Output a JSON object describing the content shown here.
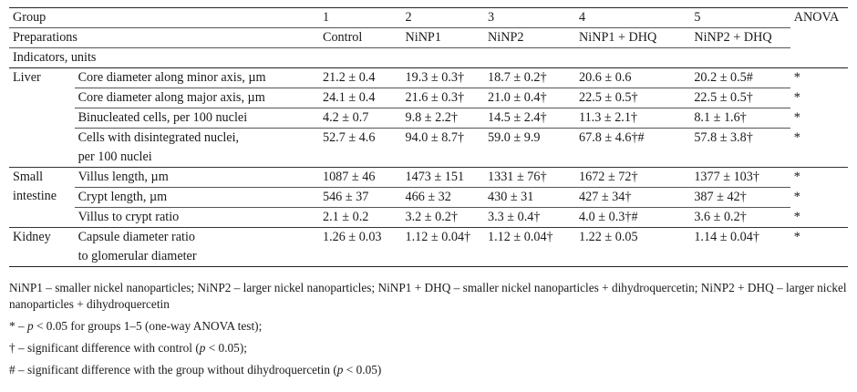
{
  "header": {
    "group_label": "Group",
    "group_numbers": [
      "1",
      "2",
      "3",
      "4",
      "5"
    ],
    "anova_label": "ANOVA",
    "preparations_label": "Preparations",
    "preparations": [
      "Control",
      "NiNP1",
      "NiNP2",
      "NiNP1 + DHQ",
      "NiNP2 + DHQ"
    ],
    "indicators_label": "Indicators, units"
  },
  "organs": {
    "liver": "Liver",
    "small_intestine_line1": "Small",
    "small_intestine_line2": "intestine",
    "kidney": "Kidney"
  },
  "rows": [
    {
      "indicator": "Core diameter along minor axis, µm",
      "values": [
        "21.2 ± 0.4",
        "19.3 ± 0.3†",
        "18.7 ± 0.2†",
        "20.6 ± 0.6",
        "20.2 ± 0.5#"
      ],
      "anova": "*"
    },
    {
      "indicator": "Core diameter along major axis, µm",
      "values": [
        "24.1 ± 0.4",
        "21.6 ± 0.3†",
        "21.0 ± 0.4†",
        "22.5 ± 0.5†",
        "22.5 ± 0.5†"
      ],
      "anova": "*"
    },
    {
      "indicator": "Binucleated cells, per 100 nuclei",
      "values": [
        "4.2 ± 0.7",
        "9.8 ± 2.2†",
        "14.5 ± 2.4†",
        "11.3 ± 2.1†",
        "8.1 ± 1.6†"
      ],
      "anova": "*"
    },
    {
      "indicator_line1": "Cells with disintegrated nuclei,",
      "indicator_line2": "per 100 nuclei",
      "values": [
        "52.7 ± 4.6",
        "94.0 ± 8.7†",
        "59.0 ± 9.9",
        "67.8 ± 4.6†#",
        "57.8 ± 3.8†"
      ],
      "anova": "*"
    },
    {
      "indicator": "Villus length, µm",
      "values": [
        "1087 ± 46",
        "1473 ± 151",
        "1331 ± 76†",
        "1672 ± 72†",
        "1377 ± 103†"
      ],
      "anova": "*"
    },
    {
      "indicator": "Crypt length, µm",
      "values": [
        "546 ± 37",
        "466 ± 32",
        "430 ± 31",
        "427 ± 34†",
        "387 ± 42†"
      ],
      "anova": "*"
    },
    {
      "indicator": "Villus to crypt ratio",
      "values": [
        "2.1 ± 0.2",
        "3.2 ± 0.2†",
        "3.3 ± 0.4†",
        "4.0 ± 0.3†#",
        "3.6 ± 0.2†"
      ],
      "anova": "*"
    },
    {
      "indicator_line1": "Capsule diameter ratio",
      "indicator_line2": "to glomerular diameter",
      "values": [
        "1.26 ± 0.03",
        "1.12 ± 0.04†",
        "1.12 ± 0.04†",
        "1.22 ± 0.05",
        "1.14 ± 0.04†"
      ],
      "anova": "*"
    }
  ],
  "footnotes": {
    "abbreviations": "NiNP1 – smaller nickel nanoparticles; NiNP2 – larger nickel nanoparticles; NiNP1 + DHQ – smaller nickel nanoparticles + dihydroquercetin; NiNP2 + DHQ – larger nickel nanoparticles + dihydroquercetin",
    "anova_mark": "*",
    "anova_dash": "–",
    "p_symbol": "p",
    "anova_text": "< 0.05 for groups 1–5 (one-way ANOVA test);",
    "dagger_text_a": "† – significant difference with control (",
    "dagger_text_b": " < 0.05);",
    "hash_text_a": "#  – significant difference with the group without dihydroquercetin (",
    "hash_text_b": " < 0.05)"
  }
}
